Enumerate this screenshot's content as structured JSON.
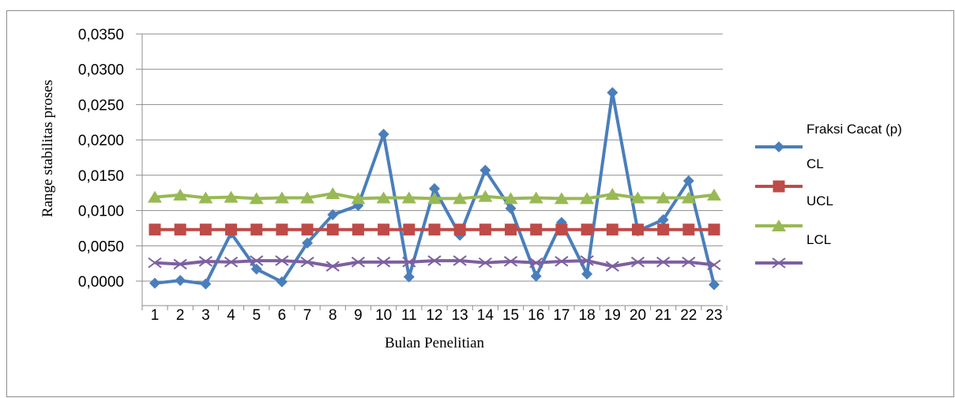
{
  "chart_data": {
    "type": "line",
    "title": "",
    "xlabel": "Bulan Penelitian",
    "ylabel": "Range stabilitas proses",
    "ylim": [
      0.0,
      0.035
    ],
    "yticks": [
      0.0,
      0.005,
      0.01,
      0.015,
      0.02,
      0.025,
      0.03,
      0.035
    ],
    "ytick_labels": [
      "0,0000",
      "0,0050",
      "0,0100",
      "0,0150",
      "0,0200",
      "0,0250",
      "0,0300",
      "0,0350"
    ],
    "categories": [
      "1",
      "2",
      "3",
      "4",
      "5",
      "6",
      "7",
      "8",
      "9",
      "10",
      "11",
      "12",
      "13",
      "14",
      "15",
      "16",
      "17",
      "18",
      "19",
      "20",
      "21",
      "22",
      "23"
    ],
    "grid": true,
    "legend_position": "right",
    "series": [
      {
        "name": "Fraksi Cacat (p)",
        "color": "#4a7ebb",
        "marker": "diamond",
        "values": [
          -0.0003,
          0.0001,
          -0.0004,
          0.0068,
          0.0017,
          -0.0001,
          0.0054,
          0.0094,
          0.0107,
          0.0208,
          0.0006,
          0.0131,
          0.0065,
          0.0157,
          0.0103,
          0.0007,
          0.0083,
          0.001,
          0.0267,
          0.0071,
          0.0087,
          0.0142,
          -0.0005
        ]
      },
      {
        "name": "CL",
        "color": "#be4b48",
        "marker": "square",
        "values": [
          0.0073,
          0.0073,
          0.0073,
          0.0073,
          0.0073,
          0.0073,
          0.0073,
          0.0073,
          0.0073,
          0.0073,
          0.0073,
          0.0073,
          0.0073,
          0.0073,
          0.0073,
          0.0073,
          0.0073,
          0.0073,
          0.0073,
          0.0073,
          0.0073,
          0.0073,
          0.0073
        ]
      },
      {
        "name": "UCL",
        "color": "#98b954",
        "marker": "triangle",
        "values": [
          0.0119,
          0.0122,
          0.0118,
          0.0119,
          0.0117,
          0.0118,
          0.0118,
          0.0124,
          0.0117,
          0.0118,
          0.0118,
          0.0117,
          0.0117,
          0.012,
          0.0117,
          0.0118,
          0.0117,
          0.0117,
          0.0123,
          0.0118,
          0.0118,
          0.0118,
          0.0122
        ]
      },
      {
        "name": "LCL",
        "color": "#7d60a0",
        "marker": "x",
        "values": [
          0.0026,
          0.0024,
          0.0028,
          0.0027,
          0.0029,
          0.0029,
          0.0027,
          0.0021,
          0.0027,
          0.0027,
          0.0027,
          0.0029,
          0.0029,
          0.0026,
          0.0028,
          0.0026,
          0.0028,
          0.0029,
          0.0021,
          0.0027,
          0.0027,
          0.0027,
          0.0023
        ]
      }
    ]
  }
}
